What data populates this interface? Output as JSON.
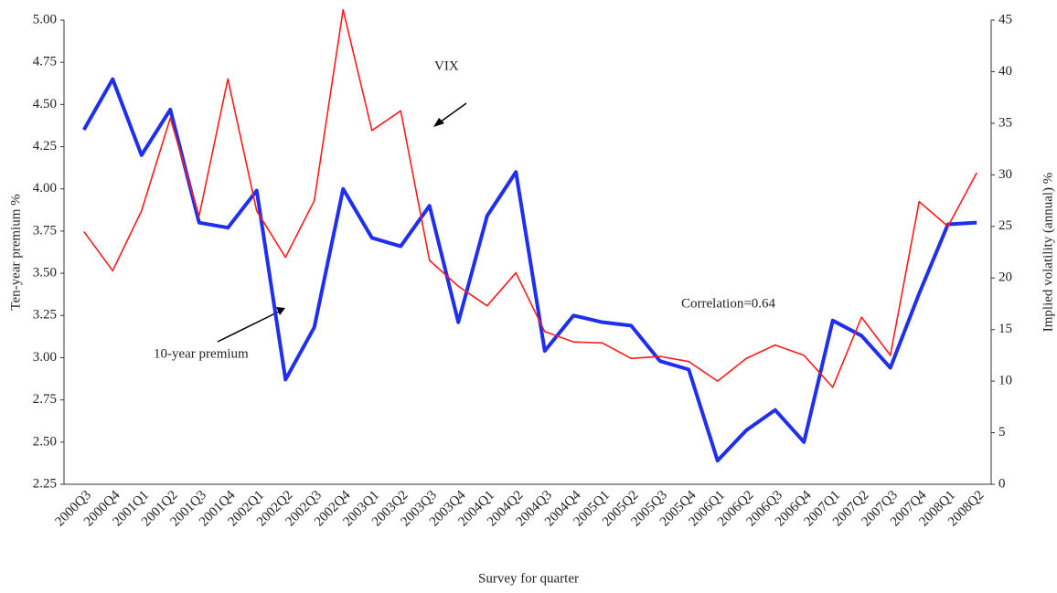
{
  "chart_data": {
    "type": "line",
    "x_label": "Survey for quarter",
    "y_label": "Ten-year premium %",
    "y2_label": "Implied volatility (annual) %",
    "annotations": [
      "VIX",
      "10-year premium",
      "Correlation=0.64"
    ],
    "categories": [
      "2000Q3",
      "2000Q4",
      "2001Q1",
      "2001Q2",
      "2001Q3",
      "2001Q4",
      "2002Q1",
      "2002Q2",
      "2002Q3",
      "2002Q4",
      "2003Q1",
      "2003Q2",
      "2003Q3",
      "2003Q4",
      "2004Q1",
      "2004Q2",
      "2004Q3",
      "2004Q4",
      "2005Q1",
      "2005Q2",
      "2005Q3",
      "2005Q4",
      "2006Q1",
      "2006Q2",
      "2006Q3",
      "2006Q4",
      "2007Q1",
      "2007Q2",
      "2007Q3",
      "2007Q4",
      "2008Q1",
      "2008Q2"
    ],
    "series": [
      {
        "name": "10-year premium",
        "color": "#1f2ff0",
        "axis": "y",
        "width": 4,
        "values": [
          4.35,
          4.65,
          4.2,
          4.47,
          3.8,
          3.77,
          3.99,
          2.87,
          3.18,
          4.0,
          3.71,
          3.66,
          3.9,
          3.21,
          3.84,
          4.1,
          3.04,
          3.25,
          3.21,
          3.19,
          2.98,
          2.93,
          2.39,
          2.57,
          2.69,
          2.5,
          3.22,
          3.13,
          2.94,
          3.38,
          3.79,
          3.8
        ]
      },
      {
        "name": "VIX",
        "color": "#ff1a1a",
        "axis": "y2",
        "width": 1.6,
        "values": [
          24.5,
          20.7,
          26.5,
          35.5,
          26,
          39.3,
          26.5,
          22,
          27.5,
          46,
          34.3,
          36.2,
          21.7,
          19.2,
          17.3,
          20.5,
          14.8,
          13.8,
          13.7,
          12.2,
          12.4,
          11.9,
          10.0,
          12.2,
          13.5,
          12.5,
          9.4,
          16.2,
          12.5,
          27.4,
          25,
          30.2
        ]
      }
    ],
    "ylim": [
      2.25,
      5.0
    ],
    "yticks": [
      2.25,
      {
        "value": 2.5,
        "label": "2.50"
      },
      2.75,
      {
        "value": 3,
        "label": "3.00"
      },
      3.25,
      {
        "value": 3.5,
        "label": "3.50"
      },
      3.75,
      {
        "value": 4,
        "label": "4.00"
      },
      4.25,
      {
        "value": 4.5,
        "label": "4.50"
      },
      4.75,
      {
        "value": 5,
        "label": "5.00"
      }
    ],
    "y2lim": [
      0,
      45
    ],
    "y2ticks": [
      0,
      5,
      10,
      15,
      20,
      25,
      30,
      35,
      40,
      45
    ],
    "grid": false
  }
}
